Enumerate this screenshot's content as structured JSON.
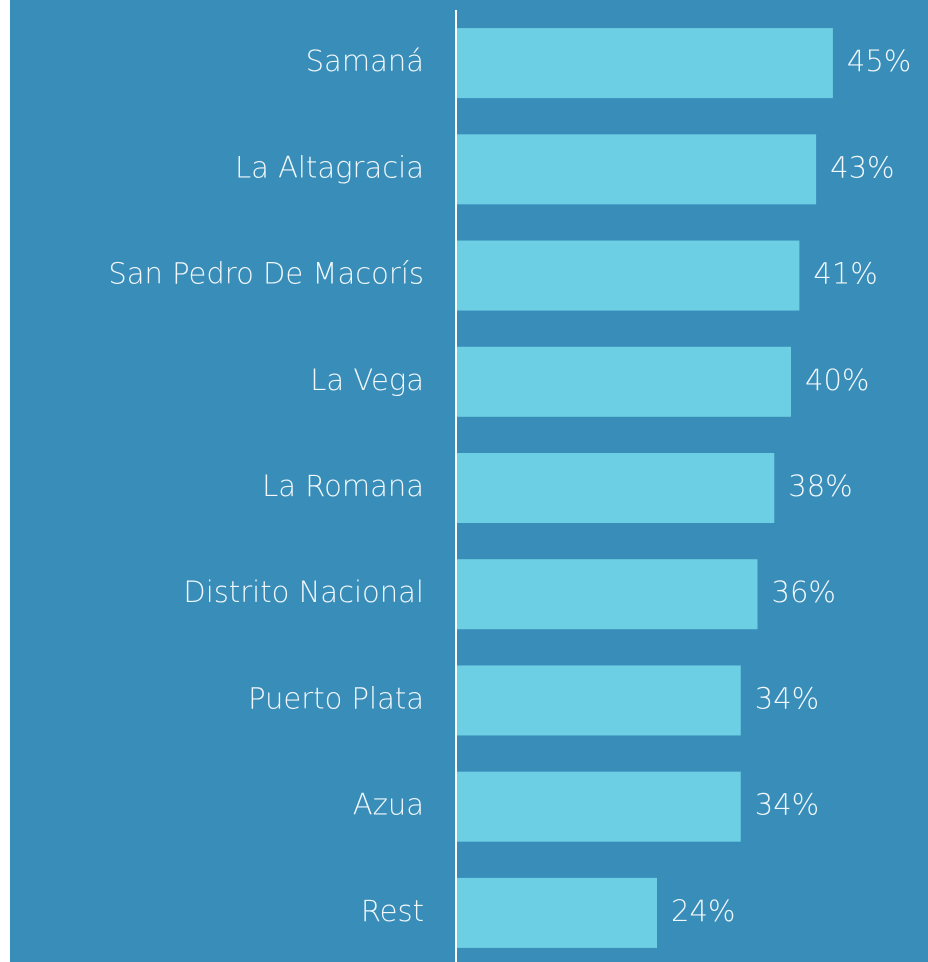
{
  "chart_data": {
    "type": "bar",
    "orientation": "horizontal",
    "categories": [
      "Samaná",
      "La Altagracia",
      "San Pedro De Macorís",
      "La Vega",
      "La Romana",
      "Distrito Nacional",
      "Puerto Plata",
      "Azua",
      "Rest"
    ],
    "values": [
      45,
      43,
      41,
      40,
      38,
      36,
      34,
      34,
      24
    ],
    "value_labels": [
      "45%",
      "43%",
      "41%",
      "40%",
      "38%",
      "36%",
      "34%",
      "34%",
      "24%"
    ],
    "color": "#6dcfe3",
    "xlim": [
      0,
      56
    ]
  }
}
